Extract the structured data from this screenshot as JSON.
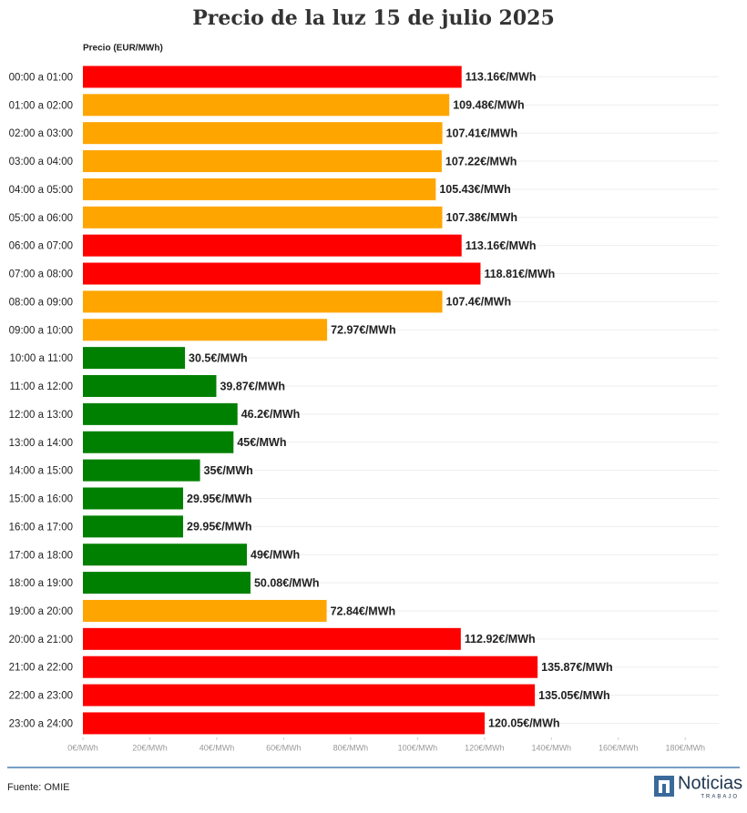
{
  "chart_data": {
    "type": "hbar",
    "title": "Precio de la luz 15 de julio 2025",
    "x_label": "Precio (EUR/MWh)",
    "categories": [
      "00:00 a 01:00",
      "01:00 a 02:00",
      "02:00 a 03:00",
      "03:00 a 04:00",
      "04:00 a 05:00",
      "05:00 a 06:00",
      "06:00 a 07:00",
      "07:00 a 08:00",
      "08:00 a 09:00",
      "09:00 a 10:00",
      "10:00 a 11:00",
      "11:00 a 12:00",
      "12:00 a 13:00",
      "13:00 a 14:00",
      "14:00 a 15:00",
      "15:00 a 16:00",
      "16:00 a 17:00",
      "17:00 a 18:00",
      "18:00 a 19:00",
      "19:00 a 20:00",
      "20:00 a 21:00",
      "21:00 a 22:00",
      "22:00 a 23:00",
      "23:00 a 24:00"
    ],
    "values": [
      113.16,
      109.48,
      107.41,
      107.22,
      105.43,
      107.38,
      113.16,
      118.81,
      107.4,
      72.97,
      30.5,
      39.87,
      46.2,
      45,
      35,
      29.95,
      29.95,
      49,
      50.08,
      72.84,
      112.92,
      135.87,
      135.05,
      120.05
    ],
    "value_labels": [
      "113.16€/MWh",
      "109.48€/MWh",
      "107.41€/MWh",
      "107.22€/MWh",
      "105.43€/MWh",
      "107.38€/MWh",
      "113.16€/MWh",
      "118.81€/MWh",
      "107.4€/MWh",
      "72.97€/MWh",
      "30.5€/MWh",
      "39.87€/MWh",
      "46.2€/MWh",
      "45€/MWh",
      "35€/MWh",
      "29.95€/MWh",
      "29.95€/MWh",
      "49€/MWh",
      "50.08€/MWh",
      "72.84€/MWh",
      "112.92€/MWh",
      "135.87€/MWh",
      "135.05€/MWh",
      "120.05€/MWh"
    ],
    "colors": [
      "#ff0000",
      "#ffa500",
      "#ffa500",
      "#ffa500",
      "#ffa500",
      "#ffa500",
      "#ff0000",
      "#ff0000",
      "#ffa500",
      "#ffa500",
      "#008000",
      "#008000",
      "#008000",
      "#008000",
      "#008000",
      "#008000",
      "#008000",
      "#008000",
      "#008000",
      "#ffa500",
      "#ff0000",
      "#ff0000",
      "#ff0000",
      "#ff0000"
    ],
    "xlim": [
      0,
      190
    ],
    "xticks": [
      {
        "value": 0,
        "label": "0€/MWh"
      },
      {
        "value": 20,
        "label": "20€/MWh"
      },
      {
        "value": 40,
        "label": "40€/MWh"
      },
      {
        "value": 60,
        "label": "60€/MWh"
      },
      {
        "value": 80,
        "label": "80€/MWh"
      },
      {
        "value": 100,
        "label": "100€/MWh"
      },
      {
        "value": 120,
        "label": "120€/MWh"
      },
      {
        "value": 140,
        "label": "140€/MWh"
      },
      {
        "value": 160,
        "label": "160€/MWh"
      },
      {
        "value": 180,
        "label": "180€/MWh"
      }
    ],
    "grid": false
  },
  "source": "Fuente: OMIE",
  "logo": {
    "name": "Noticias",
    "subtitle": "TRABAJO"
  }
}
